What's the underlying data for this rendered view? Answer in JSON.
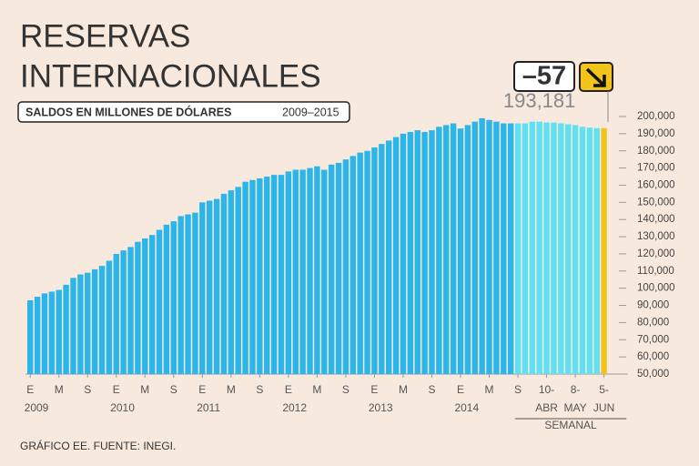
{
  "chart_data": {
    "type": "bar",
    "title_lines": [
      "RESERVAS",
      "INTERNACIONALES"
    ],
    "subtitle": "SALDOS EN MILLONES DE DÓLARES",
    "subtitle_years": "2009–2015",
    "annotation": "–57",
    "footer": "GRÁFICO EE. FUENTE: INEGI.",
    "weekly_label": "SEMANAL",
    "year_labels": [
      "2009",
      "2010",
      "2011",
      "2012",
      "2013",
      "2014"
    ],
    "ylim": [
      50000,
      200000
    ],
    "yticks": [
      {
        "value": 50000,
        "label": "50,000"
      },
      {
        "value": 60000,
        "label": "60,000"
      },
      {
        "value": 70000,
        "label": "70,000"
      },
      {
        "value": 80000,
        "label": "80,000"
      },
      {
        "value": 90000,
        "label": "90,000"
      },
      {
        "value": 100000,
        "label": "100,000"
      },
      {
        "value": 110000,
        "label": "110,000"
      },
      {
        "value": 120000,
        "label": "120,000"
      },
      {
        "value": 130000,
        "label": "130,000"
      },
      {
        "value": 140000,
        "label": "140,000"
      },
      {
        "value": 150000,
        "label": "150,000"
      },
      {
        "value": 160000,
        "label": "160,000"
      },
      {
        "value": 170000,
        "label": "170,000"
      },
      {
        "value": 180000,
        "label": "180,000"
      },
      {
        "value": 190000,
        "label": "190,000"
      },
      {
        "value": 200000,
        "label": "200,000"
      }
    ],
    "series": [
      {
        "color": "#2bb5e9",
        "categories": [
          "E",
          null,
          null,
          null,
          "M",
          null,
          null,
          null,
          "S",
          null,
          null,
          null,
          "E",
          null,
          null,
          null,
          "M",
          null,
          null,
          null,
          "S",
          null,
          null,
          null,
          "E",
          null,
          null,
          null,
          "M",
          null,
          null,
          null,
          "S",
          null,
          null,
          null,
          "E",
          null,
          null,
          null,
          "M",
          null,
          null,
          null,
          "S",
          null,
          null,
          null,
          "E",
          null,
          null,
          null,
          "M",
          null,
          null,
          null,
          "S",
          null,
          null,
          null,
          "E",
          null,
          null,
          null,
          "M",
          null,
          null,
          null
        ],
        "values": [
          93000,
          95000,
          97000,
          98000,
          99000,
          102000,
          106000,
          108000,
          109000,
          111000,
          113000,
          116000,
          120000,
          122000,
          124000,
          127000,
          129000,
          131000,
          134000,
          137000,
          139000,
          142000,
          143000,
          144000,
          150000,
          151000,
          152000,
          155000,
          157000,
          159000,
          162000,
          163000,
          164000,
          165000,
          166000,
          166000,
          168000,
          169000,
          169000,
          170000,
          171000,
          169000,
          172000,
          173000,
          175000,
          177000,
          179000,
          180000,
          182000,
          184000,
          186000,
          188000,
          190000,
          191000,
          192000,
          191000,
          192000,
          194000,
          195000,
          196000,
          193000,
          195000,
          197000,
          199000,
          198000,
          197000,
          196000,
          196000
        ]
      },
      {
        "color": "#5fe1f2",
        "categories": [
          "S",
          null,
          null,
          null,
          "10-",
          null,
          null,
          null,
          "8-",
          null,
          null,
          null
        ],
        "months": [
          null,
          null,
          null,
          null,
          "ABR",
          null,
          null,
          null,
          "MAY",
          null,
          null,
          null
        ],
        "values": [
          196000,
          196000,
          197000,
          197000,
          196500,
          196500,
          196000,
          195500,
          195000,
          194000,
          193500,
          193238
        ]
      },
      {
        "color": "#f2c31b",
        "categories": [
          "5-"
        ],
        "months": [
          "JUN"
        ],
        "values": [
          193181
        ],
        "value_labels": [
          "193,181"
        ]
      }
    ]
  }
}
